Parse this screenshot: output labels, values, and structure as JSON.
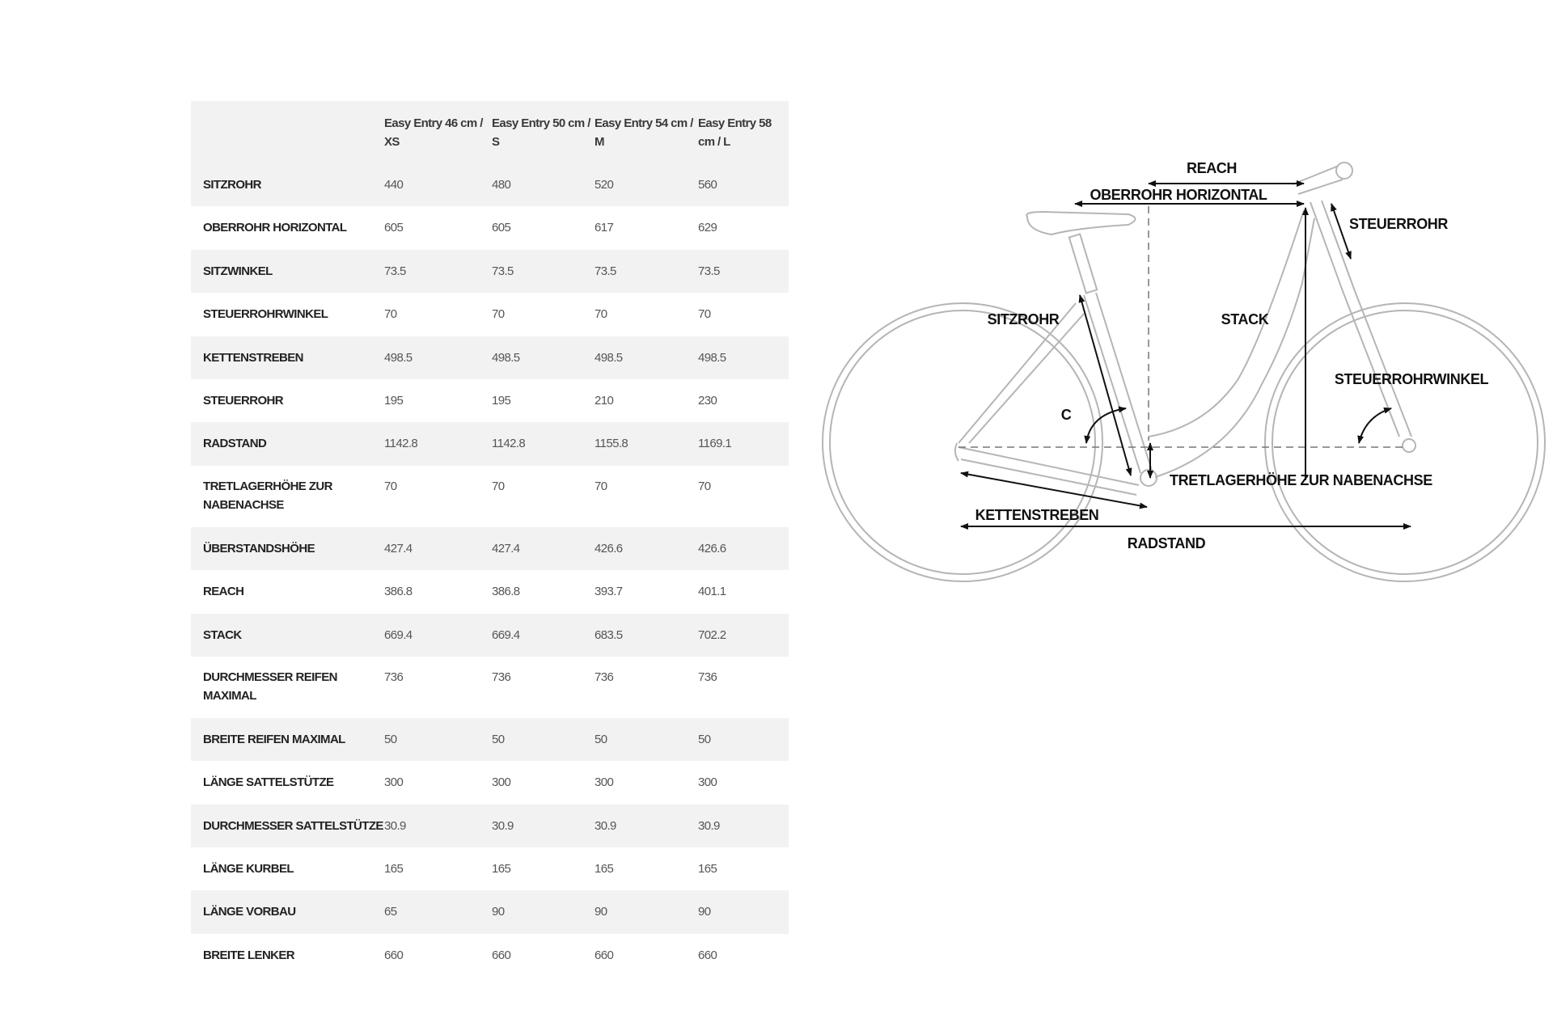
{
  "table": {
    "columns": [
      "",
      "Easy Entry 46 cm / XS",
      "Easy Entry 50 cm / S",
      "Easy Entry 54 cm / M",
      "Easy Entry 58 cm / L"
    ],
    "rows": [
      {
        "label": "SITZROHR",
        "values": [
          "440",
          "480",
          "520",
          "560"
        ]
      },
      {
        "label": "OBERROHR HORIZONTAL",
        "values": [
          "605",
          "605",
          "617",
          "629"
        ]
      },
      {
        "label": "SITZWINKEL",
        "values": [
          "73.5",
          "73.5",
          "73.5",
          "73.5"
        ]
      },
      {
        "label": "STEUERROHRWINKEL",
        "values": [
          "70",
          "70",
          "70",
          "70"
        ]
      },
      {
        "label": "KETTENSTREBEN",
        "values": [
          "498.5",
          "498.5",
          "498.5",
          "498.5"
        ]
      },
      {
        "label": "STEUERROHR",
        "values": [
          "195",
          "195",
          "210",
          "230"
        ]
      },
      {
        "label": "RADSTAND",
        "values": [
          "1142.8",
          "1142.8",
          "1155.8",
          "1169.1"
        ]
      },
      {
        "label": "TRETLAGERHÖHE ZUR NABENACHSE",
        "values": [
          "70",
          "70",
          "70",
          "70"
        ],
        "tall": true
      },
      {
        "label": "ÜBERSTANDSHÖHE",
        "values": [
          "427.4",
          "427.4",
          "426.6",
          "426.6"
        ]
      },
      {
        "label": "REACH",
        "values": [
          "386.8",
          "386.8",
          "393.7",
          "401.1"
        ]
      },
      {
        "label": "STACK",
        "values": [
          "669.4",
          "669.4",
          "683.5",
          "702.2"
        ]
      },
      {
        "label": "DURCHMESSER REIFEN MAXIMAL",
        "values": [
          "736",
          "736",
          "736",
          "736"
        ],
        "tall": true
      },
      {
        "label": "BREITE REIFEN MAXIMAL",
        "values": [
          "50",
          "50",
          "50",
          "50"
        ]
      },
      {
        "label": "LÄNGE SATTELSTÜTZE",
        "values": [
          "300",
          "300",
          "300",
          "300"
        ]
      },
      {
        "label": "DURCHMESSER SATTELSTÜTZE",
        "values": [
          "30.9",
          "30.9",
          "30.9",
          "30.9"
        ]
      },
      {
        "label": "LÄNGE KURBEL",
        "values": [
          "165",
          "165",
          "165",
          "165"
        ]
      },
      {
        "label": "LÄNGE VORBAU",
        "values": [
          "65",
          "90",
          "90",
          "90"
        ]
      },
      {
        "label": "BREITE LENKER",
        "values": [
          "660",
          "660",
          "660",
          "660"
        ]
      }
    ]
  },
  "diagram": {
    "labels": {
      "reach": "REACH",
      "oberrohr": "OBERROHR HORIZONTAL",
      "steuerrohr": "STEUERROHR",
      "sitzrohr": "SITZROHR",
      "stack": "STACK",
      "steuerrohrwinkel": "STEUERROHRWINKEL",
      "c": "C",
      "tretlager": "TRETLAGERHÖHE ZUR NABENACHSE",
      "kettenstreben": "KETTENSTREBEN",
      "radstand": "RADSTAND"
    },
    "colors": {
      "bike_outline": "#b5b5b5",
      "arrows": "#111111",
      "row_shade": "#f2f2f2"
    }
  }
}
